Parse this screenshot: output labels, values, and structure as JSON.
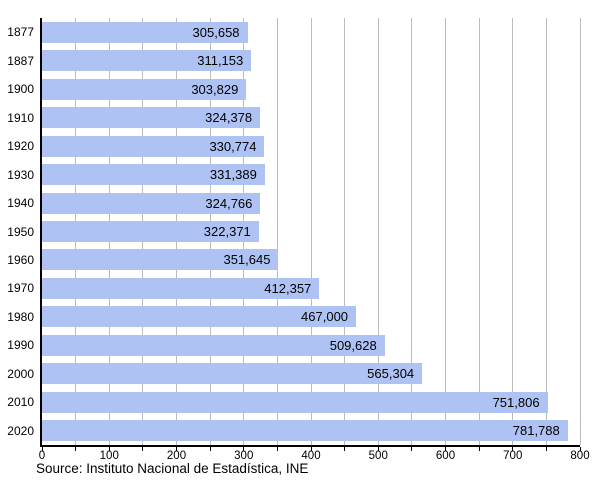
{
  "chart_data": {
    "type": "bar",
    "orientation": "horizontal",
    "title": "",
    "xlabel": "",
    "ylabel": "",
    "categories": [
      "1877",
      "1887",
      "1900",
      "1910",
      "1920",
      "1930",
      "1940",
      "1950",
      "1960",
      "1970",
      "1980",
      "1990",
      "2000",
      "2010",
      "2020"
    ],
    "values": [
      305658,
      311153,
      303829,
      324378,
      330774,
      331389,
      324766,
      322371,
      351645,
      412357,
      467000,
      509628,
      565304,
      751806,
      781788
    ],
    "value_labels": [
      "305,658",
      "311,153",
      "303,829",
      "324,378",
      "330,774",
      "331,389",
      "324,766",
      "322,371",
      "351,645",
      "412,357",
      "467,000",
      "509,628",
      "565,304",
      "751,806",
      "781,788"
    ],
    "xlim": [
      0,
      800000
    ],
    "grid_step": 50000,
    "tick_step": 50000,
    "label_step": 100000,
    "x_tick_labels": [
      "0",
      "100",
      "200",
      "300",
      "400",
      "500",
      "600",
      "700",
      "800"
    ],
    "grid_on": true,
    "legend": "none",
    "source": "Source: Instituto Nacional de Estadística, INE",
    "colors": {
      "bar": "#AEC3F4",
      "grid": "#BBBBBB",
      "axis": "#000000",
      "text": "#000000",
      "background": "#FFFFFF"
    }
  }
}
